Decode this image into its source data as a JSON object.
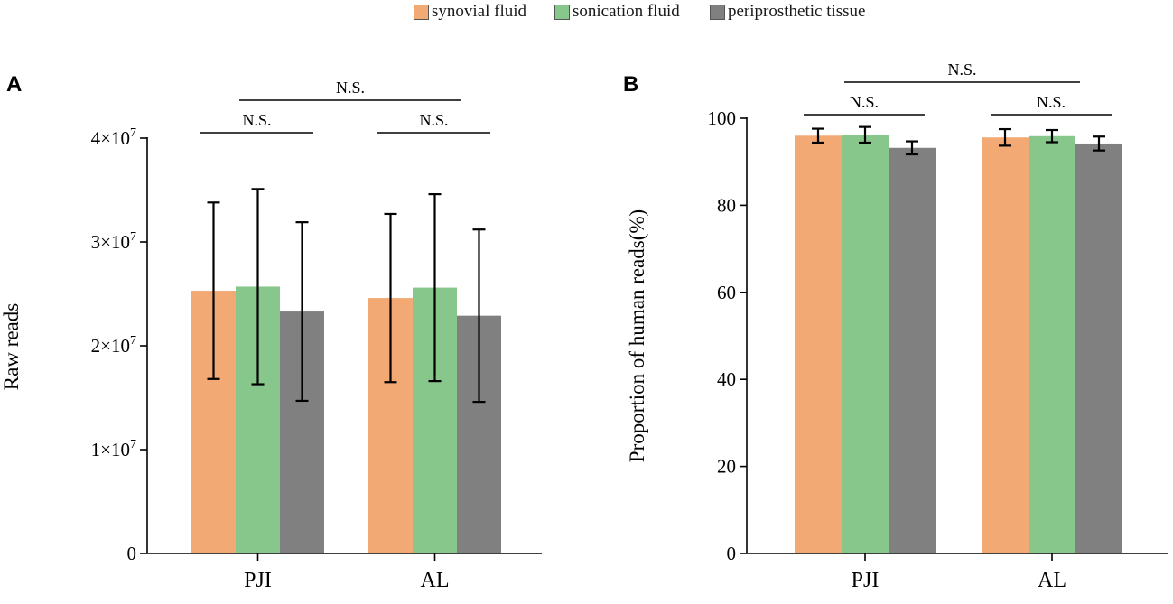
{
  "colors": {
    "synovial": "#f2a973",
    "sonication": "#88c78b",
    "periprosthetic": "#808080"
  },
  "legend": {
    "items": [
      {
        "label": "synovial fluid",
        "color_key": "synovial"
      },
      {
        "label": "sonication fluid",
        "color_key": "sonication"
      },
      {
        "label": "periprosthetic tissue",
        "color_key": "periprosthetic"
      }
    ]
  },
  "panels": {
    "a_label": "A",
    "b_label": "B"
  },
  "chart_data": [
    {
      "type": "bar",
      "panel": "A",
      "ylabel": "Raw reads",
      "ylim": [
        0,
        40000000
      ],
      "yticks": [
        {
          "value": 0,
          "mantissa": "0",
          "exponent": ""
        },
        {
          "value": 10000000,
          "mantissa": "1×10",
          "exponent": "7"
        },
        {
          "value": 20000000,
          "mantissa": "2×10",
          "exponent": "7"
        },
        {
          "value": 30000000,
          "mantissa": "3×10",
          "exponent": "7"
        },
        {
          "value": 40000000,
          "mantissa": "4×10",
          "exponent": "7"
        }
      ],
      "categories": [
        "PJI",
        "AL"
      ],
      "series": [
        {
          "name": "synovial fluid",
          "color_key": "synovial",
          "values": [
            25300000,
            24600000
          ],
          "errors": [
            8500000,
            8100000
          ]
        },
        {
          "name": "sonication fluid",
          "color_key": "sonication",
          "values": [
            25700000,
            25600000
          ],
          "errors": [
            9400000,
            9000000
          ]
        },
        {
          "name": "periprosthetic tissue",
          "color_key": "periprosthetic",
          "values": [
            23300000,
            22900000
          ],
          "errors": [
            8600000,
            8300000
          ]
        }
      ],
      "significance": [
        {
          "label": "N.S.",
          "from": 0,
          "to": 0,
          "level": 0
        },
        {
          "label": "N.S.",
          "from": 1,
          "to": 1,
          "level": 0
        },
        {
          "label": "N.S.",
          "from": 0,
          "to": 1,
          "level": 1
        }
      ]
    },
    {
      "type": "bar",
      "panel": "B",
      "ylabel": "Proportion of human reads(%)",
      "ylim": [
        0,
        100
      ],
      "yticks": [
        {
          "value": 0,
          "mantissa": "0",
          "exponent": ""
        },
        {
          "value": 20,
          "mantissa": "20",
          "exponent": ""
        },
        {
          "value": 40,
          "mantissa": "40",
          "exponent": ""
        },
        {
          "value": 60,
          "mantissa": "60",
          "exponent": ""
        },
        {
          "value": 80,
          "mantissa": "80",
          "exponent": ""
        },
        {
          "value": 100,
          "mantissa": "100",
          "exponent": ""
        }
      ],
      "categories": [
        "PJI",
        "AL"
      ],
      "series": [
        {
          "name": "synovial fluid",
          "color_key": "synovial",
          "values": [
            96.0,
            95.6
          ],
          "errors": [
            1.6,
            1.9
          ]
        },
        {
          "name": "sonication fluid",
          "color_key": "sonication",
          "values": [
            96.2,
            95.9
          ],
          "errors": [
            1.8,
            1.4
          ]
        },
        {
          "name": "periprosthetic tissue",
          "color_key": "periprosthetic",
          "values": [
            93.2,
            94.2
          ],
          "errors": [
            1.5,
            1.6
          ]
        }
      ],
      "significance": [
        {
          "label": "N.S.",
          "from": 0,
          "to": 0,
          "level": 0
        },
        {
          "label": "N.S.",
          "from": 1,
          "to": 1,
          "level": 0
        },
        {
          "label": "N.S.",
          "from": 0,
          "to": 1,
          "level": 1
        }
      ]
    }
  ]
}
